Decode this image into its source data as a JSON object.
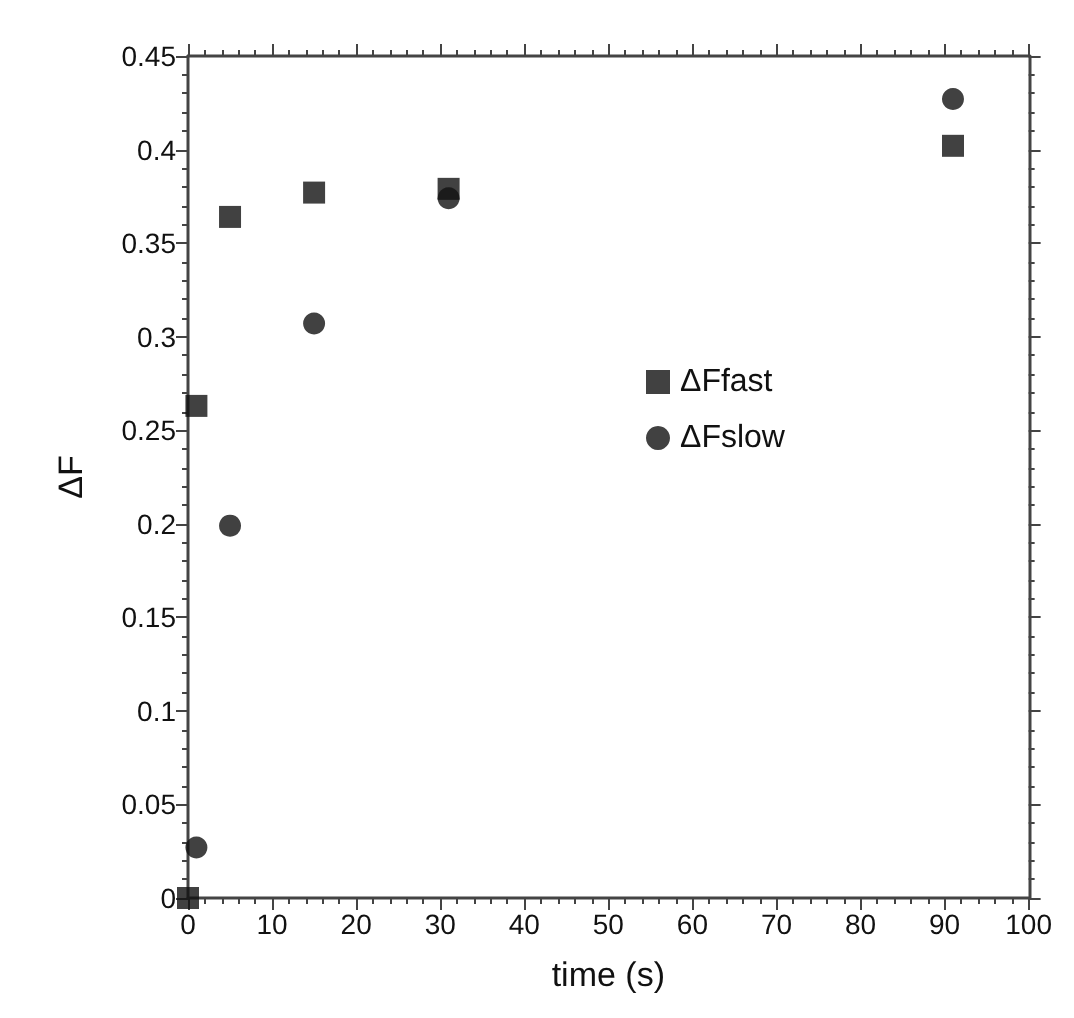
{
  "chart_data": {
    "type": "scatter",
    "xlabel": "time (s)",
    "ylabel": "ΔF",
    "xlim": [
      0,
      100
    ],
    "xticks": [
      0,
      10,
      20,
      30,
      40,
      50,
      60,
      70,
      80,
      90,
      100
    ],
    "ylim": [
      0,
      0.45
    ],
    "yticks": [
      0,
      0.05,
      0.1,
      0.15,
      0.2,
      0.25,
      0.3,
      0.35,
      0.4,
      0.45
    ],
    "grid": false,
    "legend": "right",
    "series": [
      {
        "name": "ΔFfast",
        "color": "#111111",
        "marker": "square",
        "x": [
          0,
          1,
          5,
          15,
          31,
          91
        ],
        "values": [
          0,
          0.263,
          0.364,
          0.377,
          0.379,
          0.402
        ]
      },
      {
        "name": "ΔFslow",
        "color": "#111111",
        "marker": "circle",
        "x": [
          1,
          5,
          15,
          31,
          91
        ],
        "values": [
          0.027,
          0.199,
          0.307,
          0.374,
          0.427
        ]
      }
    ]
  }
}
